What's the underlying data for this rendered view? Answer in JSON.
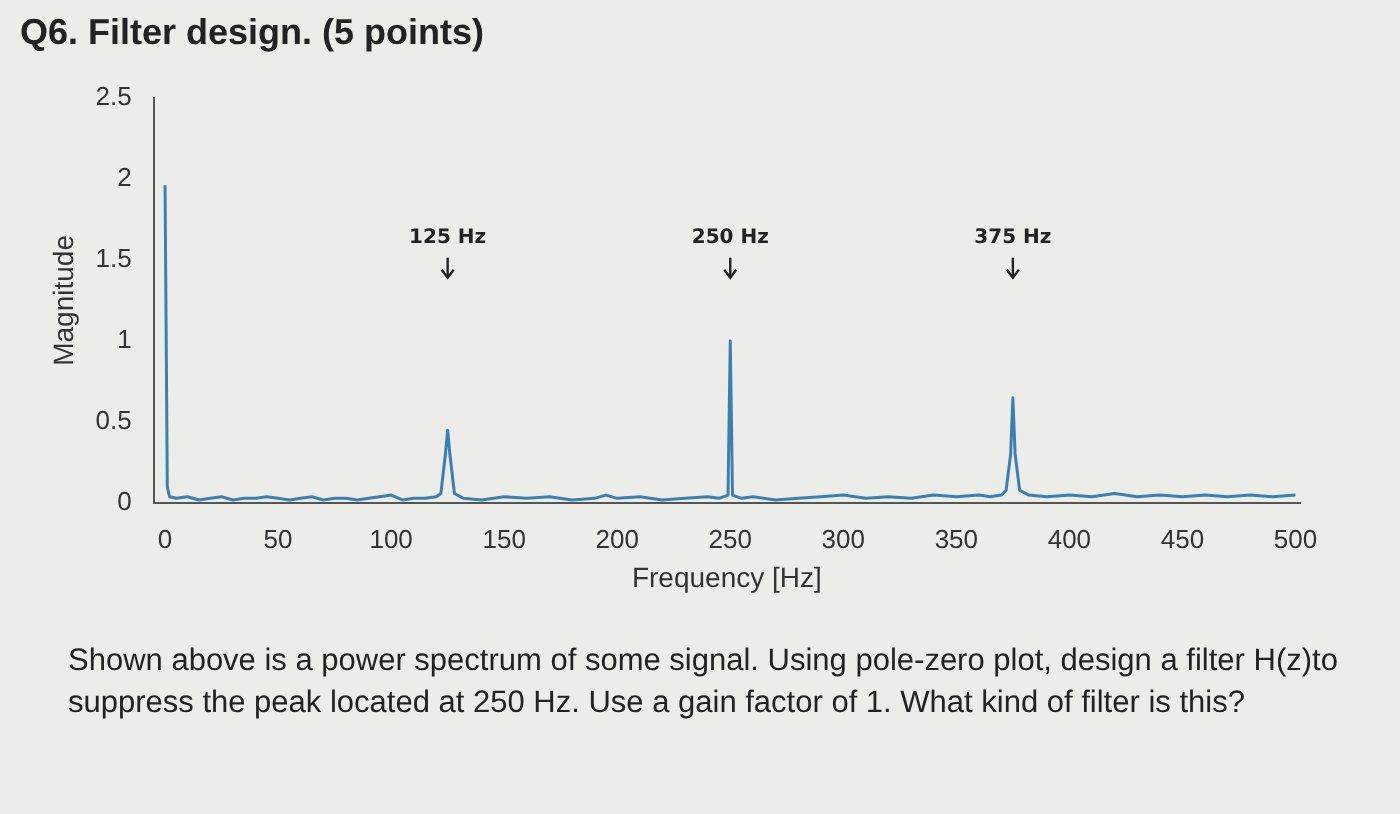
{
  "chart_data": {
    "type": "line",
    "title": "Q6. Filter design. (5 points)",
    "xlabel": "Frequency [Hz]",
    "ylabel": "Magnitude",
    "series": [
      {
        "color": "#3b7fb3",
        "x": [
          0,
          1,
          2,
          5,
          10,
          15,
          20,
          25,
          30,
          35,
          40,
          45,
          50,
          55,
          60,
          65,
          70,
          75,
          80,
          85,
          90,
          95,
          100,
          105,
          110,
          115,
          120,
          122,
          124,
          125,
          126,
          128,
          132,
          140,
          150,
          160,
          170,
          180,
          190,
          195,
          200,
          210,
          220,
          230,
          240,
          245,
          249,
          250,
          251,
          255,
          260,
          270,
          280,
          290,
          300,
          310,
          320,
          330,
          340,
          350,
          360,
          365,
          370,
          372,
          374,
          375,
          376,
          378,
          382,
          390,
          400,
          410,
          420,
          430,
          440,
          450,
          460,
          470,
          480,
          490,
          500
        ],
        "values": [
          1.96,
          0.1,
          0.04,
          0.03,
          0.04,
          0.02,
          0.03,
          0.04,
          0.02,
          0.03,
          0.03,
          0.04,
          0.03,
          0.02,
          0.03,
          0.04,
          0.02,
          0.03,
          0.03,
          0.02,
          0.03,
          0.04,
          0.05,
          0.02,
          0.03,
          0.03,
          0.04,
          0.06,
          0.3,
          0.45,
          0.3,
          0.06,
          0.03,
          0.02,
          0.04,
          0.03,
          0.04,
          0.02,
          0.03,
          0.05,
          0.03,
          0.04,
          0.02,
          0.03,
          0.04,
          0.03,
          0.05,
          1.0,
          0.05,
          0.03,
          0.04,
          0.02,
          0.03,
          0.04,
          0.05,
          0.03,
          0.04,
          0.03,
          0.05,
          0.04,
          0.05,
          0.04,
          0.05,
          0.08,
          0.3,
          0.65,
          0.3,
          0.08,
          0.05,
          0.04,
          0.05,
          0.04,
          0.06,
          0.04,
          0.05,
          0.04,
          0.05,
          0.04,
          0.05,
          0.04,
          0.05
        ]
      }
    ],
    "xlim": [
      -5,
      502
    ],
    "xticks": [
      0,
      50,
      100,
      150,
      200,
      250,
      300,
      350,
      400,
      450,
      500
    ],
    "ylim": [
      0,
      2.5
    ],
    "yticks": [
      0,
      0.5,
      1,
      1.5,
      2,
      2.5
    ],
    "grid": false,
    "marker": "none",
    "line_style": "solid",
    "annotations": [
      {
        "text": "125 Hz",
        "x": 125
      },
      {
        "text": "250 Hz",
        "x": 250
      },
      {
        "text": "375 Hz",
        "x": 375
      },
      "Shown above is a power spectrum of some signal.  Using pole-zero plot, design a filter H(z)to suppress the peak located at 250 Hz.  Use a gain factor of 1. What kind of filter is this?"
    ]
  }
}
